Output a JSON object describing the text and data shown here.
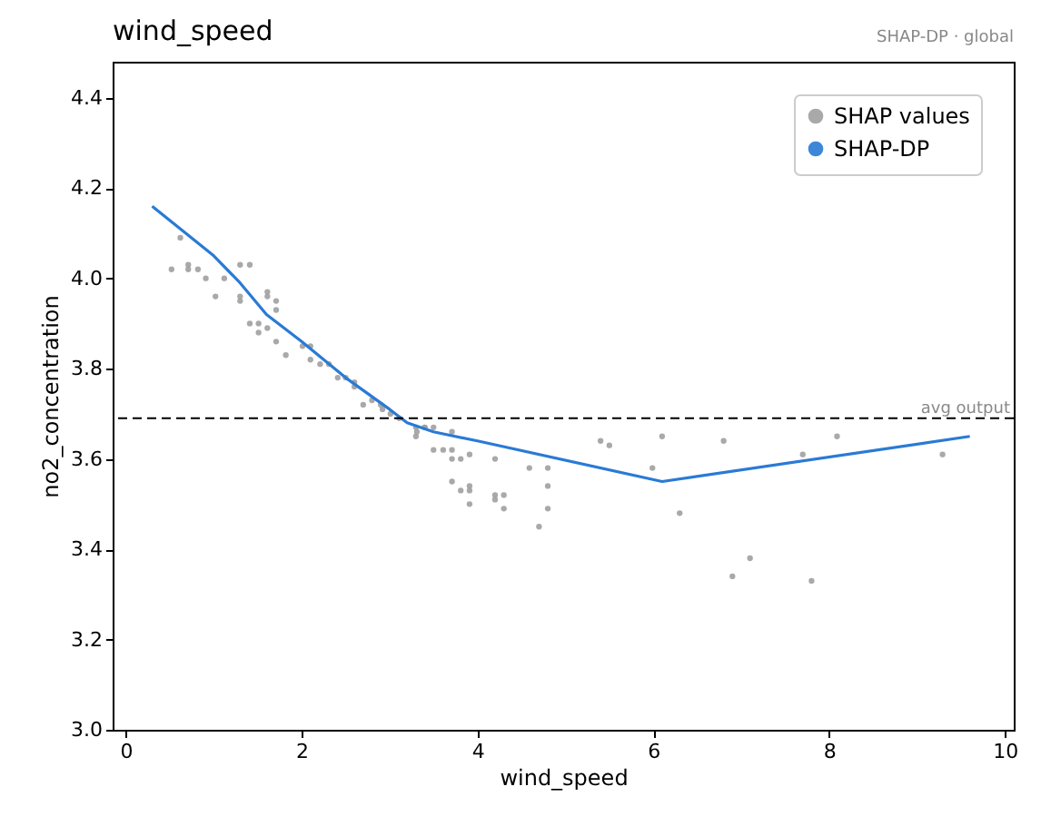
{
  "chart_data": {
    "type": "scatter",
    "title": "wind_speed",
    "subtitle": "SHAP-DP · global",
    "xlabel": "wind_speed",
    "ylabel": "no2_concentration",
    "xlim": [
      -0.15,
      10.1
    ],
    "ylim": [
      3.0,
      4.48
    ],
    "xticks": [
      0,
      2,
      4,
      6,
      8,
      10
    ],
    "yticks": [
      {
        "value": 3.0,
        "label": "3.0"
      },
      3.2,
      3.4,
      3.6,
      3.8,
      {
        "value": 4.0,
        "label": "4.0"
      },
      4.2,
      4.4
    ],
    "grid": false,
    "legend": "top right",
    "marker": "circle",
    "ref_lines": [
      {
        "axis": "y",
        "value": 3.69,
        "label": "avg output",
        "color": "#000000",
        "line_style": "dashed"
      }
    ],
    "series": [
      {
        "name": "SHAP values",
        "type": "scatter",
        "color": "#a0a0a0",
        "x": [
          0.52,
          0.62,
          0.71,
          0.71,
          0.82,
          0.91,
          1.02,
          1.12,
          1.3,
          1.41,
          1.3,
          1.3,
          1.61,
          1.61,
          1.71,
          1.71,
          1.41,
          1.51,
          1.51,
          1.61,
          1.71,
          1.82,
          2.01,
          2.1,
          2.1,
          2.21,
          2.31,
          2.41,
          2.5,
          2.6,
          2.6,
          2.7,
          2.8,
          2.9,
          2.92,
          3.01,
          3.11,
          3.31,
          3.4,
          3.5,
          3.3,
          3.3,
          3.4,
          3.5,
          3.61,
          3.71,
          3.71,
          3.71,
          3.81,
          3.91,
          3.71,
          3.81,
          3.91,
          3.91,
          3.91,
          4.2,
          4.2,
          4.2,
          4.3,
          4.3,
          4.59,
          4.7,
          4.8,
          4.8,
          4.8,
          5.4,
          5.5,
          5.99,
          6.1,
          6.3,
          6.8,
          6.9,
          7.1,
          7.7,
          7.8,
          8.09,
          9.29
        ],
        "values": [
          4.02,
          4.09,
          4.03,
          4.02,
          4.02,
          4.0,
          3.96,
          4.0,
          4.03,
          4.03,
          3.96,
          3.95,
          3.97,
          3.96,
          3.95,
          3.93,
          3.9,
          3.9,
          3.88,
          3.89,
          3.86,
          3.83,
          3.85,
          3.85,
          3.82,
          3.81,
          3.81,
          3.78,
          3.78,
          3.77,
          3.76,
          3.72,
          3.73,
          3.72,
          3.71,
          3.7,
          3.69,
          3.66,
          3.67,
          3.62,
          3.67,
          3.65,
          3.67,
          3.67,
          3.62,
          3.66,
          3.62,
          3.6,
          3.6,
          3.61,
          3.55,
          3.53,
          3.54,
          3.53,
          3.5,
          3.6,
          3.52,
          3.51,
          3.52,
          3.49,
          3.58,
          3.45,
          3.58,
          3.54,
          3.49,
          3.64,
          3.63,
          3.58,
          3.65,
          3.48,
          3.64,
          3.34,
          3.38,
          3.61,
          3.33,
          3.65,
          3.61
        ]
      },
      {
        "name": "SHAP-DP",
        "type": "line",
        "color": "#2a7ad5",
        "marker": "none",
        "x": [
          0.3,
          1.0,
          1.3,
          1.6,
          2.0,
          2.5,
          3.0,
          3.2,
          3.5,
          4.0,
          6.1,
          9.6
        ],
        "values": [
          4.16,
          4.05,
          3.99,
          3.92,
          3.86,
          3.78,
          3.71,
          3.68,
          3.66,
          3.64,
          3.55,
          3.65
        ]
      }
    ]
  }
}
